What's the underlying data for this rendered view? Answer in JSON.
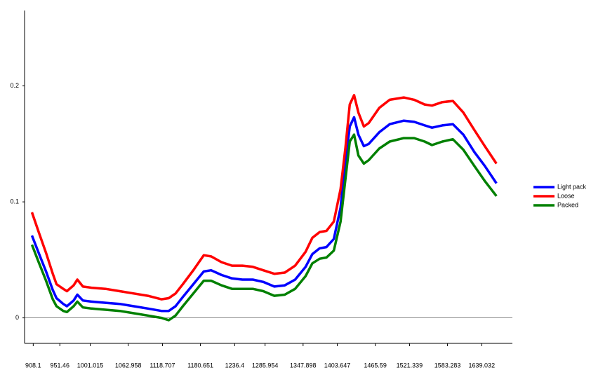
{
  "chart_data": {
    "type": "line",
    "x": [
      906,
      917,
      929,
      940,
      946,
      957,
      963,
      974,
      980,
      989,
      1003,
      1026,
      1049,
      1072,
      1095,
      1117,
      1129,
      1140,
      1152,
      1169,
      1186,
      1198,
      1215,
      1232,
      1249,
      1266,
      1283,
      1301,
      1318,
      1335,
      1352,
      1363,
      1375,
      1386,
      1398,
      1409,
      1417,
      1424,
      1431,
      1438,
      1447,
      1455,
      1472,
      1489,
      1512,
      1529,
      1546,
      1558,
      1575,
      1592,
      1609,
      1627,
      1644,
      1663
    ],
    "series": [
      {
        "name": "Light pack",
        "color": "#0000ff",
        "values": [
          0.071,
          0.056,
          0.04,
          0.024,
          0.017,
          0.012,
          0.01,
          0.015,
          0.02,
          0.015,
          0.014,
          0.013,
          0.012,
          0.01,
          0.008,
          0.006,
          0.006,
          0.01,
          0.018,
          0.029,
          0.04,
          0.041,
          0.037,
          0.034,
          0.033,
          0.033,
          0.031,
          0.027,
          0.028,
          0.033,
          0.044,
          0.055,
          0.06,
          0.061,
          0.068,
          0.095,
          0.135,
          0.165,
          0.173,
          0.158,
          0.148,
          0.15,
          0.16,
          0.167,
          0.17,
          0.169,
          0.166,
          0.164,
          0.166,
          0.167,
          0.158,
          0.143,
          0.131,
          0.116
        ]
      },
      {
        "name": "Loose",
        "color": "#ff0000",
        "values": [
          0.091,
          0.074,
          0.056,
          0.038,
          0.029,
          0.025,
          0.023,
          0.028,
          0.033,
          0.027,
          0.026,
          0.025,
          0.023,
          0.021,
          0.019,
          0.016,
          0.017,
          0.021,
          0.029,
          0.041,
          0.054,
          0.053,
          0.048,
          0.045,
          0.045,
          0.044,
          0.041,
          0.038,
          0.039,
          0.045,
          0.057,
          0.069,
          0.074,
          0.075,
          0.083,
          0.111,
          0.147,
          0.184,
          0.192,
          0.177,
          0.165,
          0.168,
          0.181,
          0.188,
          0.19,
          0.188,
          0.184,
          0.183,
          0.186,
          0.187,
          0.177,
          0.162,
          0.148,
          0.133
        ]
      },
      {
        "name": "Packed",
        "color": "#008000",
        "values": [
          0.063,
          0.048,
          0.032,
          0.016,
          0.01,
          0.006,
          0.005,
          0.01,
          0.014,
          0.009,
          0.008,
          0.007,
          0.006,
          0.004,
          0.002,
          0.0,
          -0.002,
          0.002,
          0.01,
          0.021,
          0.032,
          0.032,
          0.028,
          0.025,
          0.025,
          0.025,
          0.023,
          0.019,
          0.02,
          0.025,
          0.036,
          0.047,
          0.051,
          0.052,
          0.058,
          0.083,
          0.12,
          0.152,
          0.158,
          0.14,
          0.133,
          0.136,
          0.146,
          0.152,
          0.155,
          0.155,
          0.152,
          0.149,
          0.152,
          0.154,
          0.145,
          0.131,
          0.118,
          0.105
        ]
      }
    ],
    "xlim": [
      894,
      1689
    ],
    "xticks": [
      908.1,
      951.46,
      1001.015,
      1062.958,
      1118.707,
      1180.651,
      1236.4,
      1285.954,
      1347.898,
      1403.647,
      1465.59,
      1521.339,
      1583.283,
      1639.032
    ],
    "ylim": [
      -0.022,
      0.265
    ],
    "yticks": [
      0,
      0.1,
      0.2
    ],
    "legend": "right"
  }
}
